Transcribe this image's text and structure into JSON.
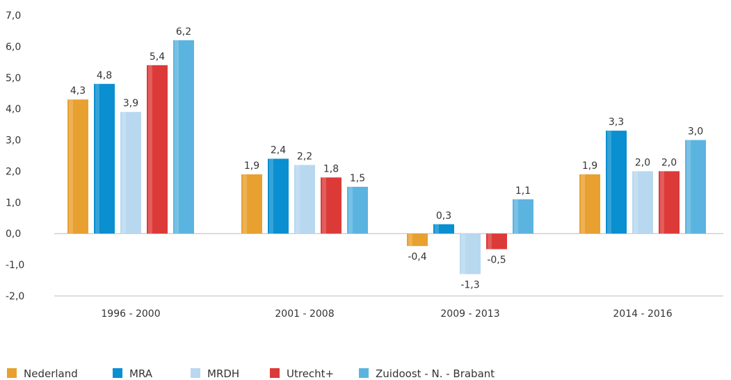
{
  "chart_data": {
    "type": "bar",
    "categories": [
      "1996 - 2000",
      "2001 - 2008",
      "2009 - 2013",
      "2014 - 2016"
    ],
    "series": [
      {
        "name": "Nederland",
        "color": "#E8A030",
        "values": [
          4.3,
          1.9,
          -0.4,
          1.9
        ],
        "labels": [
          "4,3",
          "1,9",
          "-0,4",
          "1,9"
        ]
      },
      {
        "name": "MRA",
        "color": "#0A8FD0",
        "values": [
          4.8,
          2.4,
          0.3,
          3.3
        ],
        "labels": [
          "4,8",
          "2,4",
          "0,3",
          "3,3"
        ]
      },
      {
        "name": "MRDH",
        "color": "#B8D8F0",
        "values": [
          3.9,
          2.2,
          -1.3,
          2.0
        ],
        "labels": [
          "3,9",
          "2,2",
          "-1,3",
          "2,0"
        ]
      },
      {
        "name": "Utrecht+",
        "color": "#DC3A38",
        "values": [
          5.4,
          1.8,
          -0.5,
          2.0
        ],
        "labels": [
          "5,4",
          "1,8",
          "-0,5",
          "2,0"
        ]
      },
      {
        "name": "Zuidoost - N. - Brabant",
        "color": "#5BB4E0",
        "values": [
          6.2,
          1.5,
          1.1,
          3.0
        ],
        "labels": [
          "6,2",
          "1,5",
          "1,1",
          "3,0"
        ]
      }
    ],
    "ylim": [
      -2.0,
      7.0
    ],
    "yticks": [
      7.0,
      6.0,
      5.0,
      4.0,
      3.0,
      2.0,
      1.0,
      0.0,
      -1.0,
      -2.0
    ],
    "ytick_labels": [
      "7,0",
      "6,0",
      "5,0",
      "4,0",
      "3,0",
      "2,0",
      "1,0",
      "0,0",
      "-1,0",
      "-2,0"
    ],
    "title": "",
    "xlabel": "",
    "ylabel": "",
    "grid": false,
    "legend_position": "bottom-left",
    "axis_color": "#BBBBBB"
  }
}
